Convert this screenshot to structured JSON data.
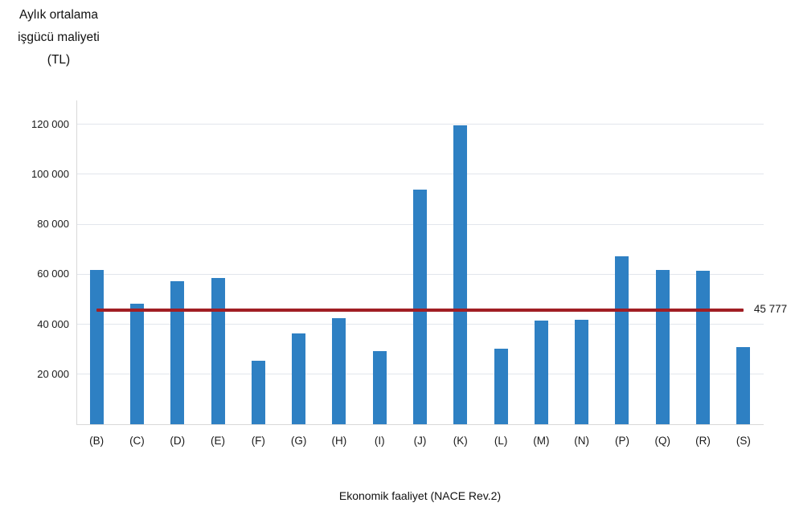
{
  "chart": {
    "title_lines": [
      "Aylık ortalama",
      "işgücü maliyeti",
      "(TL)"
    ]
  },
  "chart_data": {
    "type": "bar",
    "title": "Aylık ortalama işgücü maliyeti (TL)",
    "xlabel": "Ekonomik faaliyet (NACE Rev.2)",
    "ylabel": "Aylık ortalama işgücü maliyeti (TL)",
    "categories": [
      "(B)",
      "(C)",
      "(D)",
      "(E)",
      "(F)",
      "(G)",
      "(H)",
      "(I)",
      "(J)",
      "(K)",
      "(L)",
      "(M)",
      "(N)",
      "(P)",
      "(Q)",
      "(R)",
      "(S)"
    ],
    "values": [
      61600,
      48200,
      57300,
      58400,
      25500,
      36200,
      42400,
      29400,
      93800,
      119500,
      30300,
      41600,
      41700,
      67000,
      61800,
      61300,
      30800
    ],
    "average_line": {
      "value": 45777,
      "label": "45 777",
      "color": "#A11E24"
    },
    "yticks": [
      20000,
      40000,
      60000,
      80000,
      100000,
      120000
    ],
    "ytick_labels": [
      "20 000",
      "40 000",
      "60 000",
      "80 000",
      "100 000",
      "120 000"
    ],
    "ylim": [
      0,
      129500
    ],
    "bar_color": "#2E80C3",
    "grid": true,
    "legend": "none"
  }
}
